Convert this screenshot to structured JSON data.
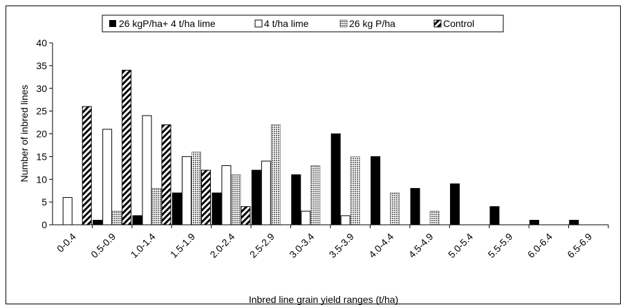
{
  "chart_data": {
    "type": "bar",
    "title": "",
    "xlabel": "Inbred line grain yield ranges (t/ha)",
    "ylabel": "Number of inbred lines",
    "ylim": [
      0,
      40
    ],
    "yticks": [
      "0",
      "5",
      "10",
      "15",
      "20",
      "25",
      "30",
      "35",
      "40"
    ],
    "grid": false,
    "legend_position": "top",
    "categories": [
      "0-0.4",
      "0.5-0.9",
      "1.0-1.4",
      "1.5-1.9",
      "2.0-2.4",
      "2.5-2.9",
      "3.0-3.4",
      "3.5-3.9",
      "4.0-4.4",
      "4.5-4.9",
      "5.0-5.4",
      "5.5-5.9",
      "6.0-6.4",
      "6.5-6.9"
    ],
    "series": [
      {
        "name": "26 kgP/ha+ 4 t/ha lime",
        "pattern": "solid-black",
        "values": [
          0,
          1,
          2,
          7,
          7,
          12,
          11,
          20,
          15,
          8,
          9,
          4,
          1,
          1
        ]
      },
      {
        "name": "4 t/ha lime",
        "pattern": "white",
        "values": [
          6,
          21,
          24,
          15,
          13,
          14,
          3,
          2,
          0,
          0,
          0,
          0,
          0,
          0
        ]
      },
      {
        "name": "26 kg P/ha",
        "pattern": "dotted-gray",
        "values": [
          0,
          3,
          8,
          16,
          11,
          22,
          13,
          15,
          7,
          3,
          0,
          0,
          0,
          0
        ]
      },
      {
        "name": "Control",
        "pattern": "diagonal-stripe",
        "values": [
          26,
          34,
          22,
          12,
          4,
          0,
          0,
          0,
          0,
          0,
          0,
          0,
          0,
          0
        ]
      }
    ]
  }
}
